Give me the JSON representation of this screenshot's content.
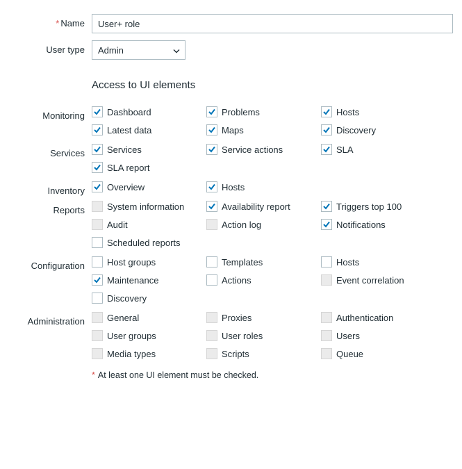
{
  "colors": {
    "text": "#1f2c33",
    "border": "#acbbc2",
    "required": "#d9534f",
    "check": "#0275b8",
    "disabledBg": "#ebebeb"
  },
  "fields": {
    "name": {
      "label": "Name",
      "value": "User+ role",
      "required": true
    },
    "userType": {
      "label": "User type",
      "value": "Admin"
    }
  },
  "sectionTitle": "Access to UI elements",
  "hint": "At least one UI element must be checked.",
  "groups": [
    {
      "label": "Monitoring",
      "items": [
        {
          "label": "Dashboard",
          "checked": true,
          "enabled": true
        },
        {
          "label": "Problems",
          "checked": true,
          "enabled": true
        },
        {
          "label": "Hosts",
          "checked": true,
          "enabled": true
        },
        {
          "label": "Latest data",
          "checked": true,
          "enabled": true
        },
        {
          "label": "Maps",
          "checked": true,
          "enabled": true
        },
        {
          "label": "Discovery",
          "checked": true,
          "enabled": true
        }
      ]
    },
    {
      "label": "Services",
      "items": [
        {
          "label": "Services",
          "checked": true,
          "enabled": true
        },
        {
          "label": "Service actions",
          "checked": true,
          "enabled": true
        },
        {
          "label": "SLA",
          "checked": true,
          "enabled": true
        },
        {
          "label": "SLA report",
          "checked": true,
          "enabled": true
        }
      ]
    },
    {
      "label": "Inventory",
      "items": [
        {
          "label": "Overview",
          "checked": true,
          "enabled": true
        },
        {
          "label": "Hosts",
          "checked": true,
          "enabled": true
        }
      ]
    },
    {
      "label": "Reports",
      "items": [
        {
          "label": "System information",
          "checked": false,
          "enabled": false
        },
        {
          "label": "Availability report",
          "checked": true,
          "enabled": true
        },
        {
          "label": "Triggers top 100",
          "checked": true,
          "enabled": true
        },
        {
          "label": "Audit",
          "checked": false,
          "enabled": false
        },
        {
          "label": "Action log",
          "checked": false,
          "enabled": false
        },
        {
          "label": "Notifications",
          "checked": true,
          "enabled": true
        },
        {
          "label": "Scheduled reports",
          "checked": false,
          "enabled": true
        }
      ]
    },
    {
      "label": "Configuration",
      "items": [
        {
          "label": "Host groups",
          "checked": false,
          "enabled": true
        },
        {
          "label": "Templates",
          "checked": false,
          "enabled": true
        },
        {
          "label": "Hosts",
          "checked": false,
          "enabled": true
        },
        {
          "label": "Maintenance",
          "checked": true,
          "enabled": true
        },
        {
          "label": "Actions",
          "checked": false,
          "enabled": true
        },
        {
          "label": "Event correlation",
          "checked": false,
          "enabled": false
        },
        {
          "label": "Discovery",
          "checked": false,
          "enabled": true
        }
      ]
    },
    {
      "label": "Administration",
      "items": [
        {
          "label": "General",
          "checked": false,
          "enabled": false
        },
        {
          "label": "Proxies",
          "checked": false,
          "enabled": false
        },
        {
          "label": "Authentication",
          "checked": false,
          "enabled": false
        },
        {
          "label": "User groups",
          "checked": false,
          "enabled": false
        },
        {
          "label": "User roles",
          "checked": false,
          "enabled": false
        },
        {
          "label": "Users",
          "checked": false,
          "enabled": false
        },
        {
          "label": "Media types",
          "checked": false,
          "enabled": false
        },
        {
          "label": "Scripts",
          "checked": false,
          "enabled": false
        },
        {
          "label": "Queue",
          "checked": false,
          "enabled": false
        }
      ]
    }
  ]
}
